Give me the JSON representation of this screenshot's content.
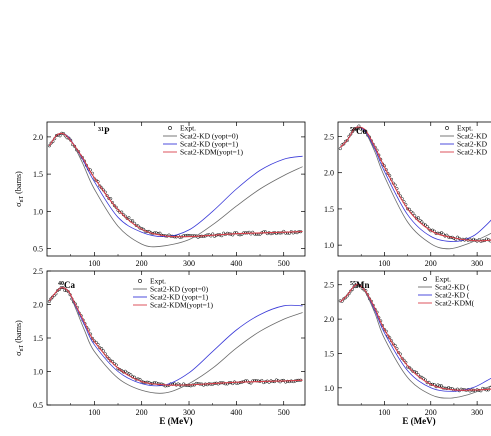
{
  "chart_data": [
    {
      "type": "line",
      "nucleus_mass": "31",
      "nucleus_symbol": "P",
      "xlim": [
        0,
        545
      ],
      "ylim": [
        0.4,
        2.2
      ],
      "xticks": [
        "100",
        "200",
        "300",
        "400",
        "500"
      ],
      "yticks": [
        "0.5",
        "1.0",
        "1.5",
        "2.0"
      ],
      "ylabel": "σ_nT (barns)",
      "xlabel": "",
      "legend": [
        "Expt.",
        "Scat2-KD  (yopt=0)",
        "Scat2-KD  (yopt=1)",
        "Scat2-KDM(yopt=1)"
      ],
      "series": [
        {
          "name": "Expt.",
          "points": [
            [
              5,
              1.88
            ],
            [
              20,
              2.02
            ],
            [
              35,
              2.04
            ],
            [
              50,
              1.95
            ],
            [
              75,
              1.72
            ],
            [
              100,
              1.45
            ],
            [
              150,
              1.02
            ],
            [
              200,
              0.76
            ],
            [
              250,
              0.67
            ],
            [
              300,
              0.66
            ],
            [
              350,
              0.68
            ],
            [
              400,
              0.7
            ],
            [
              450,
              0.71
            ],
            [
              500,
              0.72
            ],
            [
              540,
              0.73
            ]
          ]
        },
        {
          "name": "Scat2-KD  (yopt=0)",
          "points": [
            [
              5,
              1.88
            ],
            [
              20,
              2.02
            ],
            [
              35,
              2.04
            ],
            [
              50,
              1.96
            ],
            [
              75,
              1.65
            ],
            [
              100,
              1.3
            ],
            [
              150,
              0.8
            ],
            [
              200,
              0.56
            ],
            [
              240,
              0.53
            ],
            [
              300,
              0.62
            ],
            [
              350,
              0.82
            ],
            [
              400,
              1.07
            ],
            [
              450,
              1.3
            ],
            [
              500,
              1.48
            ],
            [
              540,
              1.6
            ]
          ]
        },
        {
          "name": "Scat2-KD  (yopt=1)",
          "points": [
            [
              5,
              1.88
            ],
            [
              20,
              2.02
            ],
            [
              35,
              2.04
            ],
            [
              50,
              1.96
            ],
            [
              75,
              1.7
            ],
            [
              100,
              1.4
            ],
            [
              150,
              0.92
            ],
            [
              200,
              0.72
            ],
            [
              250,
              0.66
            ],
            [
              300,
              0.75
            ],
            [
              350,
              1.0
            ],
            [
              400,
              1.3
            ],
            [
              450,
              1.55
            ],
            [
              500,
              1.7
            ],
            [
              540,
              1.74
            ]
          ]
        },
        {
          "name": "Scat2-KDM(yopt=1)",
          "points": [
            [
              5,
              1.88
            ],
            [
              20,
              2.02
            ],
            [
              35,
              2.04
            ],
            [
              50,
              1.95
            ],
            [
              75,
              1.72
            ],
            [
              100,
              1.45
            ],
            [
              150,
              1.02
            ],
            [
              200,
              0.76
            ],
            [
              250,
              0.67
            ],
            [
              300,
              0.66
            ],
            [
              350,
              0.68
            ],
            [
              400,
              0.7
            ],
            [
              450,
              0.71
            ],
            [
              500,
              0.72
            ],
            [
              540,
              0.73
            ]
          ]
        }
      ]
    },
    {
      "type": "line",
      "nucleus_mass": "59",
      "nucleus_symbol": "Co",
      "xlim": [
        0,
        345
      ],
      "ylim": [
        0.85,
        2.7
      ],
      "xticks": [
        "100",
        "200",
        "300"
      ],
      "yticks": [
        "1.0",
        "1.5",
        "2.0",
        "2.5"
      ],
      "ylabel": "",
      "xlabel": "",
      "legend": [
        "Expt.",
        "Scat2-KD",
        "Scat2-KD",
        "Scat2-KD"
      ],
      "series": [
        {
          "name": "Expt.",
          "points": [
            [
              5,
              2.35
            ],
            [
              20,
              2.45
            ],
            [
              35,
              2.6
            ],
            [
              45,
              2.63
            ],
            [
              60,
              2.58
            ],
            [
              80,
              2.35
            ],
            [
              100,
              2.08
            ],
            [
              150,
              1.5
            ],
            [
              200,
              1.2
            ],
            [
              250,
              1.1
            ],
            [
              300,
              1.06
            ],
            [
              345,
              1.08
            ]
          ]
        },
        {
          "name": "Scat2-KD",
          "points": [
            [
              5,
              2.35
            ],
            [
              20,
              2.45
            ],
            [
              35,
              2.6
            ],
            [
              45,
              2.63
            ],
            [
              60,
              2.55
            ],
            [
              80,
              2.28
            ],
            [
              100,
              1.95
            ],
            [
              150,
              1.32
            ],
            [
              200,
              1.02
            ],
            [
              240,
              0.95
            ],
            [
              280,
              1.02
            ],
            [
              320,
              1.13
            ],
            [
              345,
              1.22
            ]
          ]
        },
        {
          "name": "Scat2-KD",
          "points": [
            [
              5,
              2.35
            ],
            [
              20,
              2.45
            ],
            [
              35,
              2.6
            ],
            [
              45,
              2.63
            ],
            [
              60,
              2.56
            ],
            [
              80,
              2.32
            ],
            [
              100,
              2.02
            ],
            [
              150,
              1.42
            ],
            [
              200,
              1.12
            ],
            [
              250,
              1.05
            ],
            [
              290,
              1.12
            ],
            [
              320,
              1.28
            ],
            [
              345,
              1.45
            ]
          ]
        },
        {
          "name": "Scat2-KD",
          "points": [
            [
              5,
              2.35
            ],
            [
              20,
              2.45
            ],
            [
              35,
              2.6
            ],
            [
              45,
              2.63
            ],
            [
              60,
              2.58
            ],
            [
              80,
              2.35
            ],
            [
              100,
              2.08
            ],
            [
              150,
              1.5
            ],
            [
              200,
              1.2
            ],
            [
              250,
              1.1
            ],
            [
              300,
              1.06
            ],
            [
              345,
              1.08
            ]
          ]
        }
      ]
    },
    {
      "type": "line",
      "nucleus_mass": "40",
      "nucleus_symbol": "Ca",
      "xlim": [
        0,
        545
      ],
      "ylim": [
        0.5,
        2.5
      ],
      "xticks": [
        "100",
        "200",
        "300",
        "400",
        "500"
      ],
      "yticks": [
        "0.5",
        "1.0",
        "1.5",
        "2.0",
        "2.5"
      ],
      "ylabel": "σ_nT (barns)",
      "xlabel": "E (MeV)",
      "legend": [
        "Expt.",
        "Scat2-KD  (yopt=0)",
        "Scat2-KD  (yopt=1)",
        "Scat2-KDM(yopt=1)"
      ],
      "series": [
        {
          "name": "Expt.",
          "points": [
            [
              5,
              2.05
            ],
            [
              15,
              2.15
            ],
            [
              30,
              2.25
            ],
            [
              45,
              2.2
            ],
            [
              60,
              2.0
            ],
            [
              80,
              1.72
            ],
            [
              100,
              1.45
            ],
            [
              150,
              1.05
            ],
            [
              200,
              0.85
            ],
            [
              250,
              0.8
            ],
            [
              300,
              0.8
            ],
            [
              350,
              0.82
            ],
            [
              400,
              0.84
            ],
            [
              450,
              0.85
            ],
            [
              500,
              0.86
            ],
            [
              540,
              0.87
            ]
          ]
        },
        {
          "name": "Scat2-KD  (yopt=0)",
          "points": [
            [
              5,
              2.05
            ],
            [
              15,
              2.15
            ],
            [
              30,
              2.25
            ],
            [
              45,
              2.2
            ],
            [
              60,
              1.95
            ],
            [
              80,
              1.6
            ],
            [
              100,
              1.3
            ],
            [
              150,
              0.9
            ],
            [
              200,
              0.72
            ],
            [
              250,
              0.68
            ],
            [
              300,
              0.82
            ],
            [
              350,
              1.05
            ],
            [
              400,
              1.35
            ],
            [
              450,
              1.6
            ],
            [
              500,
              1.78
            ],
            [
              540,
              1.88
            ]
          ]
        },
        {
          "name": "Scat2-KD  (yopt=1)",
          "points": [
            [
              5,
              2.05
            ],
            [
              15,
              2.15
            ],
            [
              30,
              2.25
            ],
            [
              45,
              2.2
            ],
            [
              60,
              1.98
            ],
            [
              80,
              1.68
            ],
            [
              100,
              1.4
            ],
            [
              150,
              1.0
            ],
            [
              200,
              0.82
            ],
            [
              250,
              0.8
            ],
            [
              300,
              0.98
            ],
            [
              350,
              1.3
            ],
            [
              400,
              1.62
            ],
            [
              450,
              1.85
            ],
            [
              500,
              1.98
            ],
            [
              540,
              1.98
            ]
          ]
        },
        {
          "name": "Scat2-KDM(yopt=1)",
          "points": [
            [
              5,
              2.05
            ],
            [
              15,
              2.15
            ],
            [
              30,
              2.25
            ],
            [
              45,
              2.2
            ],
            [
              60,
              2.0
            ],
            [
              80,
              1.72
            ],
            [
              100,
              1.45
            ],
            [
              150,
              1.05
            ],
            [
              200,
              0.85
            ],
            [
              250,
              0.8
            ],
            [
              300,
              0.8
            ],
            [
              350,
              0.82
            ],
            [
              400,
              0.84
            ],
            [
              450,
              0.85
            ],
            [
              500,
              0.86
            ],
            [
              540,
              0.87
            ]
          ]
        }
      ]
    },
    {
      "type": "line",
      "nucleus_mass": "55",
      "nucleus_symbol": "Mn",
      "xlim": [
        0,
        345
      ],
      "ylim": [
        0.75,
        2.7
      ],
      "xticks": [
        "100",
        "200",
        "300"
      ],
      "yticks": [
        "1.0",
        "1.5",
        "2.0",
        "2.5"
      ],
      "ylabel": "",
      "xlabel": "E (MeV)",
      "legend": [
        "Expt.",
        "Scat2-KD  (",
        "Scat2-KD  (",
        "Scat2-KDM("
      ],
      "series": [
        {
          "name": "Expt.",
          "points": [
            [
              5,
              2.25
            ],
            [
              20,
              2.35
            ],
            [
              35,
              2.48
            ],
            [
              45,
              2.5
            ],
            [
              60,
              2.4
            ],
            [
              80,
              2.15
            ],
            [
              100,
              1.85
            ],
            [
              150,
              1.32
            ],
            [
              200,
              1.05
            ],
            [
              250,
              0.97
            ],
            [
              300,
              0.97
            ],
            [
              345,
              0.99
            ]
          ]
        },
        {
          "name": "Scat2-KD  (",
          "points": [
            [
              5,
              2.25
            ],
            [
              20,
              2.35
            ],
            [
              35,
              2.48
            ],
            [
              45,
              2.5
            ],
            [
              60,
              2.38
            ],
            [
              80,
              2.08
            ],
            [
              100,
              1.72
            ],
            [
              150,
              1.15
            ],
            [
              200,
              0.9
            ],
            [
              240,
              0.85
            ],
            [
              280,
              0.9
            ],
            [
              320,
              1.0
            ],
            [
              345,
              1.07
            ]
          ]
        },
        {
          "name": "Scat2-KD  (",
          "points": [
            [
              5,
              2.25
            ],
            [
              20,
              2.35
            ],
            [
              35,
              2.48
            ],
            [
              45,
              2.5
            ],
            [
              60,
              2.4
            ],
            [
              80,
              2.12
            ],
            [
              100,
              1.8
            ],
            [
              150,
              1.25
            ],
            [
              200,
              1.0
            ],
            [
              250,
              0.95
            ],
            [
              290,
              1.0
            ],
            [
              320,
              1.1
            ],
            [
              345,
              1.2
            ]
          ]
        },
        {
          "name": "Scat2-KDM(",
          "points": [
            [
              5,
              2.25
            ],
            [
              20,
              2.35
            ],
            [
              35,
              2.48
            ],
            [
              45,
              2.5
            ],
            [
              60,
              2.4
            ],
            [
              80,
              2.15
            ],
            [
              100,
              1.85
            ],
            [
              150,
              1.32
            ],
            [
              200,
              1.05
            ],
            [
              250,
              0.97
            ],
            [
              300,
              0.97
            ],
            [
              345,
              0.99
            ]
          ]
        }
      ]
    }
  ],
  "colors": {
    "yopt0": "#6b6b6b",
    "yopt1": "#3a3ad8",
    "kdm": "#d8404a",
    "expt": "#000000"
  }
}
